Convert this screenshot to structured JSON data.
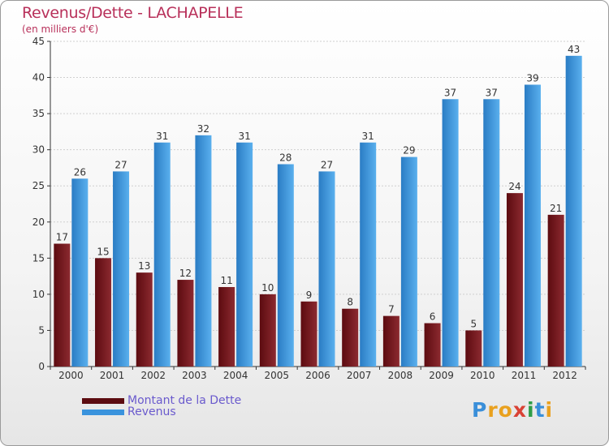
{
  "title": "Revenus/Dette - LACHAPELLE",
  "subtitle": "(en milliers d'€)",
  "logo": [
    "P",
    "r",
    "o",
    "x",
    "i",
    "t",
    "i"
  ],
  "colors": {
    "debt_dark": "#5c0b10",
    "debt_light": "#8c2a30",
    "revenue_dark": "#2a7cc4",
    "revenue_light": "#5ab0ee",
    "axis": "#333333",
    "grid": "#cfcfcf"
  },
  "chart_data": {
    "type": "bar",
    "title": "Revenus/Dette - LACHAPELLE",
    "subtitle": "(en milliers d'€)",
    "categories": [
      "2000",
      "2001",
      "2002",
      "2003",
      "2004",
      "2005",
      "2006",
      "2007",
      "2008",
      "2009",
      "2010",
      "2011",
      "2012"
    ],
    "series": [
      {
        "name": "Montant de la Dette",
        "values": [
          17,
          15,
          13,
          12,
          11,
          10,
          9,
          8,
          7,
          6,
          5,
          24,
          21
        ]
      },
      {
        "name": "Revenus",
        "values": [
          26,
          27,
          31,
          32,
          31,
          28,
          27,
          31,
          29,
          37,
          37,
          39,
          43
        ]
      }
    ],
    "ylim": [
      0,
      45
    ],
    "yticks": [
      0,
      5,
      10,
      15,
      20,
      25,
      30,
      35,
      40,
      45
    ],
    "grid": true,
    "legend": "bottom-left",
    "xlabel": "",
    "ylabel": ""
  }
}
